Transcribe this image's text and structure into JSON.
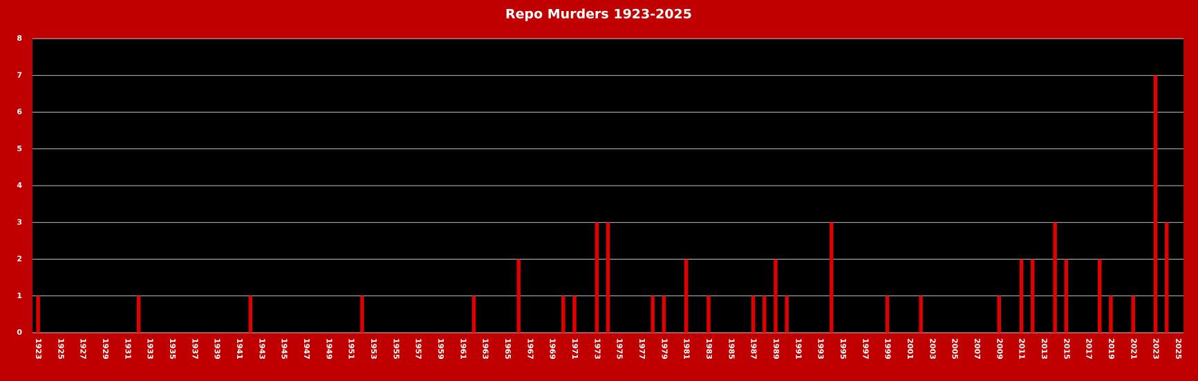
{
  "chart_data": {
    "type": "bar",
    "title": "Repo Murders 1923-2025",
    "categories": [
      "1923",
      null,
      "1925",
      null,
      "1927",
      null,
      "1929",
      null,
      "1931",
      null,
      "1933",
      null,
      "1935",
      null,
      "1937",
      null,
      "1939",
      null,
      "1941",
      null,
      "1943",
      null,
      "1945",
      null,
      "1947",
      null,
      "1949",
      null,
      "1951",
      null,
      "1953",
      null,
      "1955",
      null,
      "1957",
      null,
      "1959",
      null,
      "1961",
      null,
      "1963",
      null,
      "1965",
      null,
      "1967",
      null,
      "1969",
      null,
      "1971",
      null,
      "1973",
      null,
      "1975",
      null,
      "1977",
      null,
      "1979",
      null,
      "1981",
      null,
      "1983",
      null,
      "1985",
      null,
      "1987",
      null,
      "1989",
      null,
      "1991",
      null,
      "1993",
      null,
      "1995",
      null,
      "1997",
      null,
      "1999",
      null,
      "2001",
      null,
      "2003",
      null,
      "2005",
      null,
      "2007",
      null,
      "2009",
      null,
      "2011",
      null,
      "2013",
      null,
      "2015",
      null,
      "2017",
      null,
      "2019",
      null,
      "2021",
      null,
      "2023",
      null,
      "2025"
    ],
    "values": [
      1,
      0,
      0,
      0,
      0,
      0,
      0,
      0,
      0,
      1,
      0,
      0,
      0,
      0,
      0,
      0,
      0,
      0,
      0,
      1,
      0,
      0,
      0,
      0,
      0,
      0,
      0,
      0,
      0,
      1,
      0,
      0,
      0,
      0,
      0,
      0,
      0,
      0,
      0,
      1,
      0,
      0,
      0,
      2,
      0,
      0,
      0,
      1,
      1,
      0,
      3,
      3,
      0,
      0,
      0,
      1,
      1,
      0,
      2,
      0,
      1,
      0,
      0,
      0,
      1,
      1,
      2,
      1,
      0,
      0,
      0,
      3,
      0,
      0,
      0,
      0,
      1,
      0,
      0,
      1,
      0,
      0,
      0,
      0,
      0,
      0,
      1,
      0,
      2,
      2,
      0,
      3,
      2,
      0,
      0,
      2,
      1,
      0,
      1,
      0,
      7,
      3,
      0
    ],
    "color": "#e00000",
    "ylim": [
      0,
      8
    ],
    "yticks": [
      0,
      1,
      2,
      3,
      4,
      5,
      6,
      7,
      8
    ],
    "grid": true
  }
}
